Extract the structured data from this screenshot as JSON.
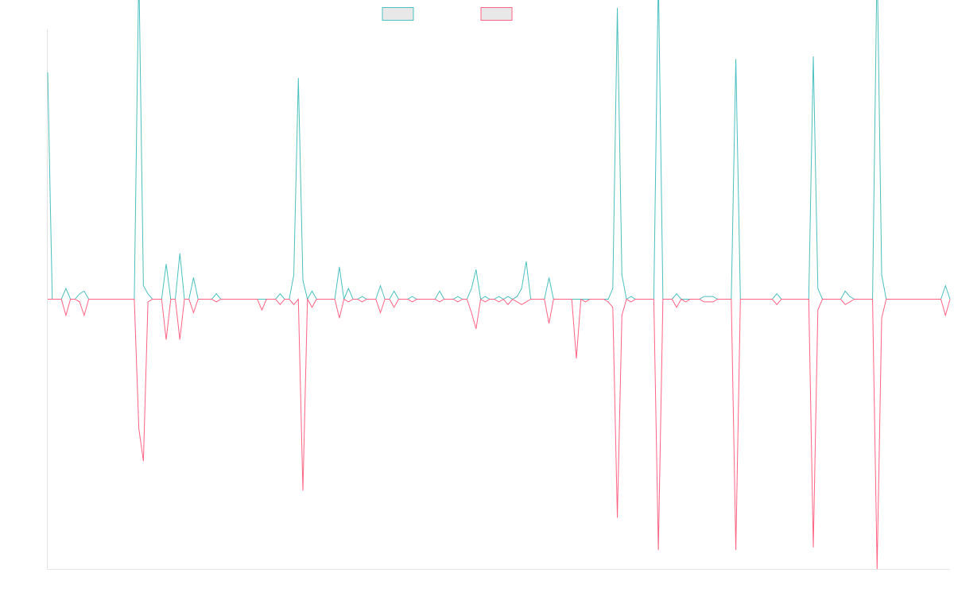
{
  "chart_data": {
    "type": "line",
    "title": "",
    "xlabel": "",
    "ylabel": "",
    "grid": false,
    "legend": "top-center",
    "ylim": [
      -100,
      100
    ],
    "n_points": 199,
    "series": [
      {
        "color": "#4bc0c0",
        "fill": "#e8e8e8",
        "spikes": [
          [
            0,
            84
          ],
          [
            4,
            4
          ],
          [
            7,
            2
          ],
          [
            8,
            3
          ],
          [
            20,
            123
          ],
          [
            21,
            5
          ],
          [
            22,
            2
          ],
          [
            26,
            13
          ],
          [
            29,
            17
          ],
          [
            32,
            8
          ],
          [
            37,
            2
          ],
          [
            46,
            0
          ],
          [
            51,
            2
          ],
          [
            54,
            9
          ],
          [
            55,
            82
          ],
          [
            56,
            7
          ],
          [
            58,
            3
          ],
          [
            64,
            12
          ],
          [
            66,
            4
          ],
          [
            69,
            1
          ],
          [
            73,
            5
          ],
          [
            76,
            3
          ],
          [
            80,
            1
          ],
          [
            86,
            3
          ],
          [
            90,
            1
          ],
          [
            93,
            4
          ],
          [
            94,
            11
          ],
          [
            96,
            1
          ],
          [
            99,
            1
          ],
          [
            101,
            1
          ],
          [
            103,
            1
          ],
          [
            104,
            4
          ],
          [
            105,
            14
          ],
          [
            110,
            8
          ],
          [
            118,
            0
          ],
          [
            123,
            0
          ],
          [
            124,
            4
          ],
          [
            125,
            108
          ],
          [
            126,
            9
          ],
          [
            128,
            1
          ],
          [
            134,
            120
          ],
          [
            138,
            2
          ],
          [
            140,
            0
          ],
          [
            144,
            1
          ],
          [
            145,
            1
          ],
          [
            146,
            1
          ],
          [
            151,
            89
          ],
          [
            154,
            0
          ],
          [
            159,
            0
          ],
          [
            160,
            2
          ],
          [
            168,
            90
          ],
          [
            169,
            4
          ],
          [
            175,
            3
          ],
          [
            176,
            1
          ],
          [
            182,
            126
          ],
          [
            183,
            9
          ],
          [
            197,
            5
          ]
        ]
      },
      {
        "color": "#ff6384",
        "fill": "#e8e8e8",
        "spikes": [
          [
            0,
            0
          ],
          [
            4,
            -6
          ],
          [
            7,
            -1
          ],
          [
            8,
            -6
          ],
          [
            20,
            -48
          ],
          [
            21,
            -60
          ],
          [
            22,
            -1
          ],
          [
            26,
            -15
          ],
          [
            29,
            -15
          ],
          [
            32,
            -5
          ],
          [
            37,
            -1
          ],
          [
            47,
            -4
          ],
          [
            51,
            -2
          ],
          [
            54,
            -2
          ],
          [
            56,
            -71
          ],
          [
            58,
            -3
          ],
          [
            64,
            -7
          ],
          [
            66,
            -1
          ],
          [
            69,
            -1
          ],
          [
            73,
            -5
          ],
          [
            76,
            -3
          ],
          [
            80,
            -1
          ],
          [
            86,
            -1
          ],
          [
            90,
            -1
          ],
          [
            93,
            -5
          ],
          [
            94,
            -11
          ],
          [
            96,
            -1
          ],
          [
            99,
            -1
          ],
          [
            101,
            -2
          ],
          [
            103,
            -1
          ],
          [
            104,
            -2
          ],
          [
            105,
            -1
          ],
          [
            110,
            -9
          ],
          [
            116,
            -22
          ],
          [
            118,
            -1
          ],
          [
            123,
            -1
          ],
          [
            124,
            -3
          ],
          [
            125,
            -81
          ],
          [
            126,
            -6
          ],
          [
            128,
            -1
          ],
          [
            134,
            -93
          ],
          [
            138,
            -3
          ],
          [
            140,
            -1
          ],
          [
            144,
            -1
          ],
          [
            145,
            -1
          ],
          [
            146,
            -1
          ],
          [
            151,
            -93
          ],
          [
            154,
            0
          ],
          [
            159,
            0
          ],
          [
            160,
            -2
          ],
          [
            168,
            -92
          ],
          [
            169,
            -4
          ],
          [
            175,
            -2
          ],
          [
            176,
            -1
          ],
          [
            182,
            -100
          ],
          [
            183,
            -7
          ],
          [
            197,
            -6
          ]
        ]
      }
    ]
  }
}
